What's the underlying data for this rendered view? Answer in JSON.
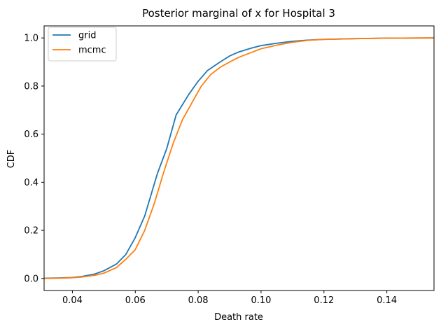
{
  "chart_data": {
    "type": "line",
    "title": "Posterior marginal of x for Hospital 3",
    "xlabel": "Death rate",
    "ylabel": "CDF",
    "xlim": [
      0.031,
      0.155
    ],
    "ylim": [
      -0.05,
      1.05
    ],
    "xticks": [
      0.04,
      0.06,
      0.08,
      0.1,
      0.12,
      0.14
    ],
    "xtick_labels": [
      "0.04",
      "0.06",
      "0.08",
      "0.10",
      "0.12",
      "0.14"
    ],
    "yticks": [
      0.0,
      0.2,
      0.4,
      0.6,
      0.8,
      1.0
    ],
    "ytick_labels": [
      "0.0",
      "0.2",
      "0.4",
      "0.6",
      "0.8",
      "1.0"
    ],
    "grid": false,
    "legend_position": "upper-left",
    "series": [
      {
        "name": "grid",
        "color": "#1f77b4",
        "points": [
          [
            0.031,
            0.001
          ],
          [
            0.035,
            0.002
          ],
          [
            0.04,
            0.004
          ],
          [
            0.043,
            0.008
          ],
          [
            0.047,
            0.018
          ],
          [
            0.05,
            0.032
          ],
          [
            0.054,
            0.06
          ],
          [
            0.057,
            0.1
          ],
          [
            0.06,
            0.17
          ],
          [
            0.063,
            0.26
          ],
          [
            0.067,
            0.435
          ],
          [
            0.07,
            0.54
          ],
          [
            0.073,
            0.68
          ],
          [
            0.077,
            0.765
          ],
          [
            0.08,
            0.82
          ],
          [
            0.083,
            0.865
          ],
          [
            0.087,
            0.9
          ],
          [
            0.09,
            0.925
          ],
          [
            0.093,
            0.942
          ],
          [
            0.097,
            0.958
          ],
          [
            0.1,
            0.968
          ],
          [
            0.105,
            0.978
          ],
          [
            0.11,
            0.986
          ],
          [
            0.115,
            0.991
          ],
          [
            0.12,
            0.994
          ],
          [
            0.13,
            0.997
          ],
          [
            0.14,
            0.999
          ],
          [
            0.155,
            1.0
          ]
        ]
      },
      {
        "name": "mcmc",
        "color": "#ff7f0e",
        "points": [
          [
            0.031,
            0.0
          ],
          [
            0.035,
            0.001
          ],
          [
            0.04,
            0.003
          ],
          [
            0.043,
            0.006
          ],
          [
            0.047,
            0.013
          ],
          [
            0.05,
            0.022
          ],
          [
            0.054,
            0.045
          ],
          [
            0.057,
            0.08
          ],
          [
            0.06,
            0.12
          ],
          [
            0.063,
            0.2
          ],
          [
            0.066,
            0.31
          ],
          [
            0.069,
            0.44
          ],
          [
            0.072,
            0.56
          ],
          [
            0.075,
            0.66
          ],
          [
            0.078,
            0.73
          ],
          [
            0.081,
            0.8
          ],
          [
            0.084,
            0.848
          ],
          [
            0.087,
            0.878
          ],
          [
            0.09,
            0.9
          ],
          [
            0.093,
            0.92
          ],
          [
            0.097,
            0.94
          ],
          [
            0.1,
            0.955
          ],
          [
            0.105,
            0.97
          ],
          [
            0.11,
            0.982
          ],
          [
            0.115,
            0.99
          ],
          [
            0.12,
            0.994
          ],
          [
            0.13,
            0.997
          ],
          [
            0.14,
            0.999
          ],
          [
            0.155,
            1.0
          ]
        ]
      }
    ]
  }
}
